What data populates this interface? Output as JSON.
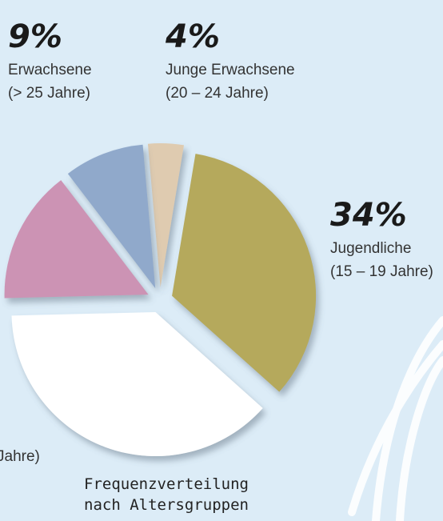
{
  "chart_data": {
    "type": "pie",
    "title": [
      "Frequenzverteilung",
      "nach Altersgruppen"
    ],
    "slices": [
      {
        "value": 4,
        "value_label": "4%",
        "color": "#dfcbb0",
        "label": [
          "Junge Erwachsene",
          "(20 – 24 Jahre)"
        ]
      },
      {
        "value": 34,
        "value_label": "34%",
        "color": "#b5a95b",
        "label": [
          "Jugendliche",
          "(15 – 19 Jahre)"
        ]
      },
      {
        "value": 38,
        "color": "#ffffff",
        "label": [
          "Jahre)"
        ]
      },
      {
        "value": 15,
        "color": "#cc93b4"
      },
      {
        "value": 9,
        "value_label": "9%",
        "color": "#90a9cb",
        "label": [
          "Erwachsene",
          "(> 25 Jahre)"
        ]
      }
    ]
  }
}
